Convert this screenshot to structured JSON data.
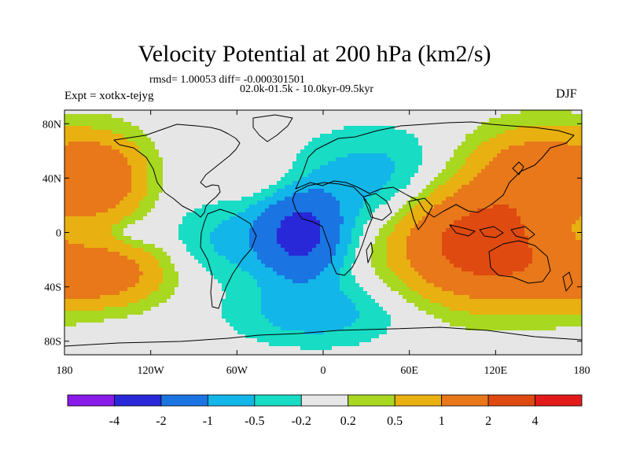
{
  "figure": {
    "title": "Velocity Potential at 200 hPa (km2/s)",
    "stats": "rmsd= 1.00053 diff= -0.000301501",
    "period": "02.0k-01.5k - 10.0kyr-09.5kyr",
    "experiment": "Expt = xotkx-tejyg",
    "season": "DJF"
  },
  "chart_data": {
    "type": "heatmap",
    "title": "Velocity Potential at 200 hPa (km2/s)",
    "projection": "cylindrical equidistant, coastlines overlay",
    "x_axis": {
      "range": [
        -180,
        180
      ],
      "ticks": [
        -180,
        -120,
        -60,
        0,
        60,
        120,
        180
      ],
      "tick_labels": [
        "180",
        "120W",
        "60W",
        "0",
        "60E",
        "120E",
        "180"
      ]
    },
    "y_axis": {
      "range": [
        -90,
        90
      ],
      "ticks": [
        80,
        40,
        0,
        -40,
        -80
      ],
      "tick_labels": [
        "80N",
        "40N",
        "0",
        "40S",
        "80S"
      ]
    },
    "colorbar": {
      "levels": [
        -4,
        -2,
        -1,
        -0.5,
        -0.2,
        0.2,
        0.5,
        1,
        2,
        4
      ],
      "level_labels": [
        "-4",
        "-2",
        "-1",
        "-0.5",
        "-0.2",
        "0.2",
        "0.5",
        "1",
        "2",
        "4"
      ],
      "colors": [
        "#8a1ae8",
        "#2828d8",
        "#1a74e2",
        "#12b6e8",
        "#18dcc4",
        "#e6e6e6",
        "#a8d820",
        "#e8b010",
        "#e8781a",
        "#de4a10",
        "#e21a1a"
      ]
    },
    "field_centers": [
      {
        "lon": -155,
        "lat": 40,
        "value": 1.6,
        "sx": 22,
        "sy": 22
      },
      {
        "lon": -148,
        "lat": -30,
        "value": 1.3,
        "sx": 28,
        "sy": 16
      },
      {
        "lon": 108,
        "lat": -8,
        "value": 2.6,
        "sx": 38,
        "sy": 28
      },
      {
        "lon": 148,
        "lat": 45,
        "value": 1.5,
        "sx": 30,
        "sy": 22
      },
      {
        "lon": 165,
        "lat": -35,
        "value": 0.8,
        "sx": 30,
        "sy": 18
      },
      {
        "lon": -30,
        "lat": 35,
        "value": 0.45,
        "sx": 22,
        "sy": 14
      },
      {
        "lon": -15,
        "lat": 0,
        "value": -2.3,
        "sx": 20,
        "sy": 24
      },
      {
        "lon": -60,
        "lat": -5,
        "value": -0.6,
        "sx": 32,
        "sy": 20
      },
      {
        "lon": 35,
        "lat": 40,
        "value": -0.7,
        "sx": 35,
        "sy": 25
      },
      {
        "lon": -5,
        "lat": -60,
        "value": -0.7,
        "sx": 40,
        "sy": 16
      },
      {
        "lon": -130,
        "lat": 0,
        "value": -0.35,
        "sx": 12,
        "sy": 6
      },
      {
        "lon": -75,
        "lat": 60,
        "value": 0.0,
        "sx": 20,
        "sy": 20
      }
    ]
  }
}
